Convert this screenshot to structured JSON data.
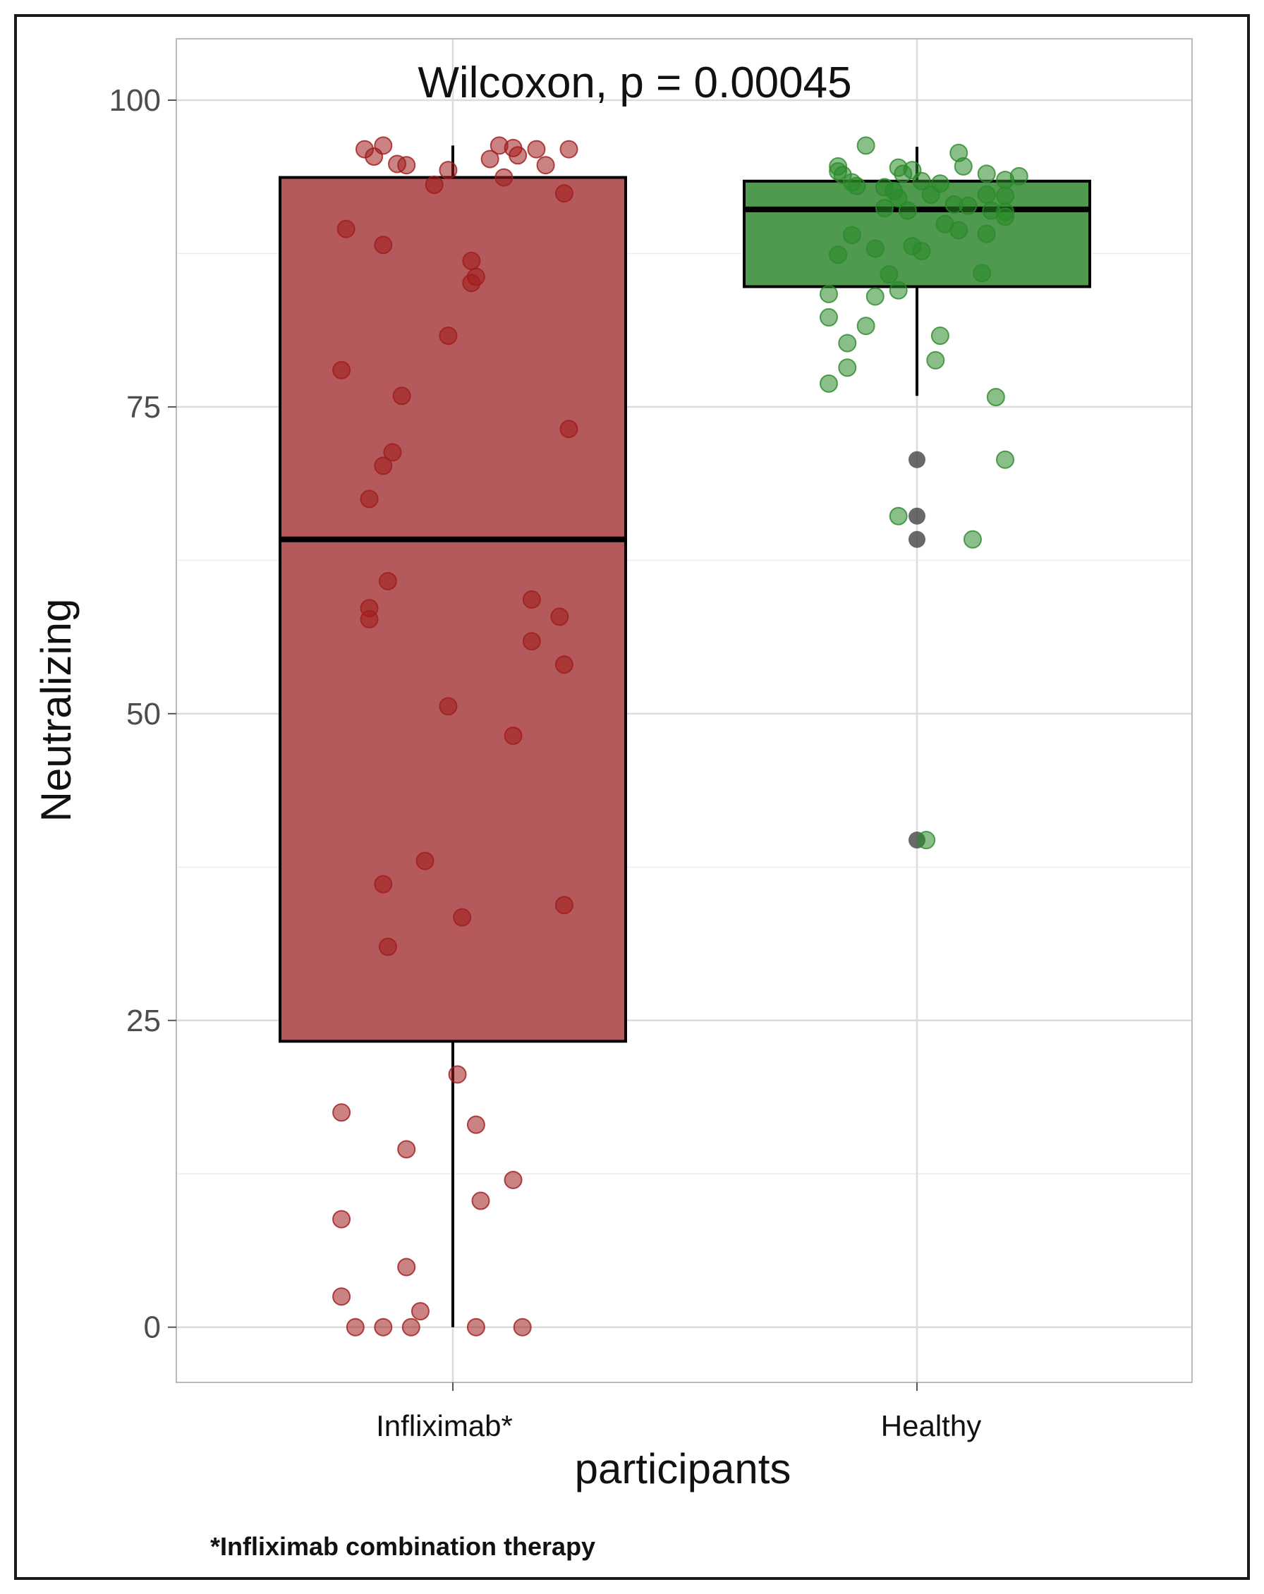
{
  "chart_data": {
    "type": "boxplot",
    "title": "Wilcoxon, p = 0.00045",
    "xlabel": "participants",
    "ylabel": "Neutralizing",
    "ylim": [
      -4.5,
      105
    ],
    "yticks": [
      0,
      25,
      50,
      75,
      100
    ],
    "grid": true,
    "categories": [
      "Infliximab*",
      "Healthy"
    ],
    "colors": {
      "infliximab_fill": "#b55a5c",
      "infliximab_point": "#a01c1c",
      "healthy_fill": "#4f9a4f",
      "healthy_point": "#2a8a2a",
      "outlier": "#444444",
      "grid": "#dcdcdc",
      "panel_border": "#bbbbbb"
    },
    "boxes": [
      {
        "category": "Infliximab*",
        "whisker_low": 0,
        "q1": 23.3,
        "median": 64.2,
        "q3": 93.7,
        "whisker_high": 96.3
      },
      {
        "category": "Healthy",
        "whisker_low": 75.9,
        "q1": 84.8,
        "median": 91.1,
        "q3": 93.4,
        "whisker_high": 96.2
      }
    ],
    "outliers": [
      {
        "category": "Healthy",
        "value": 70.7
      },
      {
        "category": "Healthy",
        "value": 66.1
      },
      {
        "category": "Healthy",
        "value": 64.2
      },
      {
        "category": "Healthy",
        "value": 39.7
      }
    ],
    "points": [
      {
        "category": "Infliximab*",
        "jitter": -0.19,
        "value": 96.0
      },
      {
        "category": "Infliximab*",
        "jitter": -0.15,
        "value": 96.3
      },
      {
        "category": "Infliximab*",
        "jitter": -0.17,
        "value": 95.4
      },
      {
        "category": "Infliximab*",
        "jitter": -0.12,
        "value": 94.8
      },
      {
        "category": "Infliximab*",
        "jitter": -0.1,
        "value": 94.7
      },
      {
        "category": "Infliximab*",
        "jitter": -0.04,
        "value": 93.1
      },
      {
        "category": "Infliximab*",
        "jitter": -0.01,
        "value": 94.3
      },
      {
        "category": "Infliximab*",
        "jitter": 0.1,
        "value": 96.3
      },
      {
        "category": "Infliximab*",
        "jitter": 0.13,
        "value": 96.1
      },
      {
        "category": "Infliximab*",
        "jitter": 0.08,
        "value": 95.2
      },
      {
        "category": "Infliximab*",
        "jitter": 0.14,
        "value": 95.5
      },
      {
        "category": "Infliximab*",
        "jitter": 0.18,
        "value": 96.0
      },
      {
        "category": "Infliximab*",
        "jitter": 0.2,
        "value": 94.7
      },
      {
        "category": "Infliximab*",
        "jitter": 0.25,
        "value": 96.0
      },
      {
        "category": "Infliximab*",
        "jitter": 0.11,
        "value": 93.7
      },
      {
        "category": "Infliximab*",
        "jitter": 0.24,
        "value": 92.4
      },
      {
        "category": "Infliximab*",
        "jitter": -0.23,
        "value": 89.5
      },
      {
        "category": "Infliximab*",
        "jitter": -0.15,
        "value": 88.2
      },
      {
        "category": "Infliximab*",
        "jitter": 0.04,
        "value": 86.9
      },
      {
        "category": "Infliximab*",
        "jitter": 0.05,
        "value": 85.6
      },
      {
        "category": "Infliximab*",
        "jitter": 0.04,
        "value": 85.1
      },
      {
        "category": "Infliximab*",
        "jitter": -0.01,
        "value": 80.8
      },
      {
        "category": "Infliximab*",
        "jitter": -0.24,
        "value": 78.0
      },
      {
        "category": "Infliximab*",
        "jitter": -0.11,
        "value": 75.9
      },
      {
        "category": "Infliximab*",
        "jitter": 0.25,
        "value": 73.2
      },
      {
        "category": "Infliximab*",
        "jitter": -0.13,
        "value": 71.3
      },
      {
        "category": "Infliximab*",
        "jitter": -0.15,
        "value": 70.2
      },
      {
        "category": "Infliximab*",
        "jitter": -0.18,
        "value": 67.5
      },
      {
        "category": "Infliximab*",
        "jitter": -0.14,
        "value": 60.8
      },
      {
        "category": "Infliximab*",
        "jitter": 0.17,
        "value": 59.3
      },
      {
        "category": "Infliximab*",
        "jitter": -0.18,
        "value": 58.6
      },
      {
        "category": "Infliximab*",
        "jitter": -0.18,
        "value": 57.7
      },
      {
        "category": "Infliximab*",
        "jitter": 0.23,
        "value": 57.9
      },
      {
        "category": "Infliximab*",
        "jitter": 0.17,
        "value": 55.9
      },
      {
        "category": "Infliximab*",
        "jitter": 0.24,
        "value": 54.0
      },
      {
        "category": "Infliximab*",
        "jitter": -0.01,
        "value": 50.6
      },
      {
        "category": "Infliximab*",
        "jitter": 0.13,
        "value": 48.2
      },
      {
        "category": "Infliximab*",
        "jitter": -0.06,
        "value": 38.0
      },
      {
        "category": "Infliximab*",
        "jitter": -0.15,
        "value": 36.1
      },
      {
        "category": "Infliximab*",
        "jitter": 0.24,
        "value": 34.4
      },
      {
        "category": "Infliximab*",
        "jitter": 0.02,
        "value": 33.4
      },
      {
        "category": "Infliximab*",
        "jitter": -0.14,
        "value": 31.0
      },
      {
        "category": "Infliximab*",
        "jitter": 0.01,
        "value": 20.6
      },
      {
        "category": "Infliximab*",
        "jitter": -0.24,
        "value": 17.5
      },
      {
        "category": "Infliximab*",
        "jitter": 0.05,
        "value": 16.5
      },
      {
        "category": "Infliximab*",
        "jitter": -0.1,
        "value": 14.5
      },
      {
        "category": "Infliximab*",
        "jitter": 0.13,
        "value": 12.0
      },
      {
        "category": "Infliximab*",
        "jitter": 0.06,
        "value": 10.3
      },
      {
        "category": "Infliximab*",
        "jitter": -0.24,
        "value": 8.8
      },
      {
        "category": "Infliximab*",
        "jitter": -0.1,
        "value": 4.9
      },
      {
        "category": "Infliximab*",
        "jitter": -0.24,
        "value": 2.5
      },
      {
        "category": "Infliximab*",
        "jitter": -0.07,
        "value": 1.3
      },
      {
        "category": "Infliximab*",
        "jitter": -0.21,
        "value": 0
      },
      {
        "category": "Infliximab*",
        "jitter": -0.15,
        "value": 0
      },
      {
        "category": "Infliximab*",
        "jitter": -0.09,
        "value": 0
      },
      {
        "category": "Infliximab*",
        "jitter": 0.05,
        "value": 0
      },
      {
        "category": "Infliximab*",
        "jitter": 0.15,
        "value": 0
      },
      {
        "category": "Healthy",
        "jitter": -0.17,
        "value": 94.6
      },
      {
        "category": "Healthy",
        "jitter": -0.17,
        "value": 94.2
      },
      {
        "category": "Healthy",
        "jitter": -0.16,
        "value": 93.9
      },
      {
        "category": "Healthy",
        "jitter": -0.14,
        "value": 93.3
      },
      {
        "category": "Healthy",
        "jitter": -0.13,
        "value": 93.0
      },
      {
        "category": "Healthy",
        "jitter": -0.11,
        "value": 96.3
      },
      {
        "category": "Healthy",
        "jitter": -0.07,
        "value": 92.9
      },
      {
        "category": "Healthy",
        "jitter": -0.05,
        "value": 92.6
      },
      {
        "category": "Healthy",
        "jitter": -0.03,
        "value": 94.0
      },
      {
        "category": "Healthy",
        "jitter": -0.01,
        "value": 94.3
      },
      {
        "category": "Healthy",
        "jitter": -0.04,
        "value": 94.5
      },
      {
        "category": "Healthy",
        "jitter": 0.01,
        "value": 93.4
      },
      {
        "category": "Healthy",
        "jitter": 0.03,
        "value": 92.3
      },
      {
        "category": "Healthy",
        "jitter": -0.04,
        "value": 92.0
      },
      {
        "category": "Healthy",
        "jitter": -0.07,
        "value": 91.2
      },
      {
        "category": "Healthy",
        "jitter": -0.02,
        "value": 91.0
      },
      {
        "category": "Healthy",
        "jitter": 0.05,
        "value": 93.2
      },
      {
        "category": "Healthy",
        "jitter": 0.09,
        "value": 95.7
      },
      {
        "category": "Healthy",
        "jitter": 0.1,
        "value": 94.6
      },
      {
        "category": "Healthy",
        "jitter": 0.15,
        "value": 94.0
      },
      {
        "category": "Healthy",
        "jitter": 0.19,
        "value": 93.5
      },
      {
        "category": "Healthy",
        "jitter": 0.22,
        "value": 93.8
      },
      {
        "category": "Healthy",
        "jitter": 0.15,
        "value": 92.3
      },
      {
        "category": "Healthy",
        "jitter": 0.19,
        "value": 92.2
      },
      {
        "category": "Healthy",
        "jitter": 0.08,
        "value": 91.5
      },
      {
        "category": "Healthy",
        "jitter": 0.11,
        "value": 91.4
      },
      {
        "category": "Healthy",
        "jitter": 0.16,
        "value": 91.0
      },
      {
        "category": "Healthy",
        "jitter": 0.19,
        "value": 90.9
      },
      {
        "category": "Healthy",
        "jitter": 0.19,
        "value": 90.5
      },
      {
        "category": "Healthy",
        "jitter": 0.06,
        "value": 89.9
      },
      {
        "category": "Healthy",
        "jitter": 0.09,
        "value": 89.4
      },
      {
        "category": "Healthy",
        "jitter": 0.15,
        "value": 89.1
      },
      {
        "category": "Healthy",
        "jitter": -0.14,
        "value": 89.0
      },
      {
        "category": "Healthy",
        "jitter": -0.09,
        "value": 87.9
      },
      {
        "category": "Healthy",
        "jitter": -0.17,
        "value": 87.4
      },
      {
        "category": "Healthy",
        "jitter": -0.01,
        "value": 88.1
      },
      {
        "category": "Healthy",
        "jitter": 0.01,
        "value": 87.7
      },
      {
        "category": "Healthy",
        "jitter": -0.06,
        "value": 85.8
      },
      {
        "category": "Healthy",
        "jitter": 0.14,
        "value": 85.9
      },
      {
        "category": "Healthy",
        "jitter": -0.19,
        "value": 84.2
      },
      {
        "category": "Healthy",
        "jitter": -0.09,
        "value": 84.0
      },
      {
        "category": "Healthy",
        "jitter": -0.04,
        "value": 84.5
      },
      {
        "category": "Healthy",
        "jitter": -0.19,
        "value": 82.3
      },
      {
        "category": "Healthy",
        "jitter": -0.11,
        "value": 81.6
      },
      {
        "category": "Healthy",
        "jitter": -0.15,
        "value": 80.2
      },
      {
        "category": "Healthy",
        "jitter": 0.05,
        "value": 80.8
      },
      {
        "category": "Healthy",
        "jitter": 0.04,
        "value": 78.8
      },
      {
        "category": "Healthy",
        "jitter": -0.15,
        "value": 78.2
      },
      {
        "category": "Healthy",
        "jitter": -0.19,
        "value": 76.9
      },
      {
        "category": "Healthy",
        "jitter": 0.17,
        "value": 75.8
      },
      {
        "category": "Healthy",
        "jitter": 0.19,
        "value": 70.7
      },
      {
        "category": "Healthy",
        "jitter": -0.04,
        "value": 66.1
      },
      {
        "category": "Healthy",
        "jitter": 0.12,
        "value": 64.2
      },
      {
        "category": "Healthy",
        "jitter": 0.02,
        "value": 39.7
      }
    ]
  },
  "footnote": "*Infliximab combination therapy"
}
